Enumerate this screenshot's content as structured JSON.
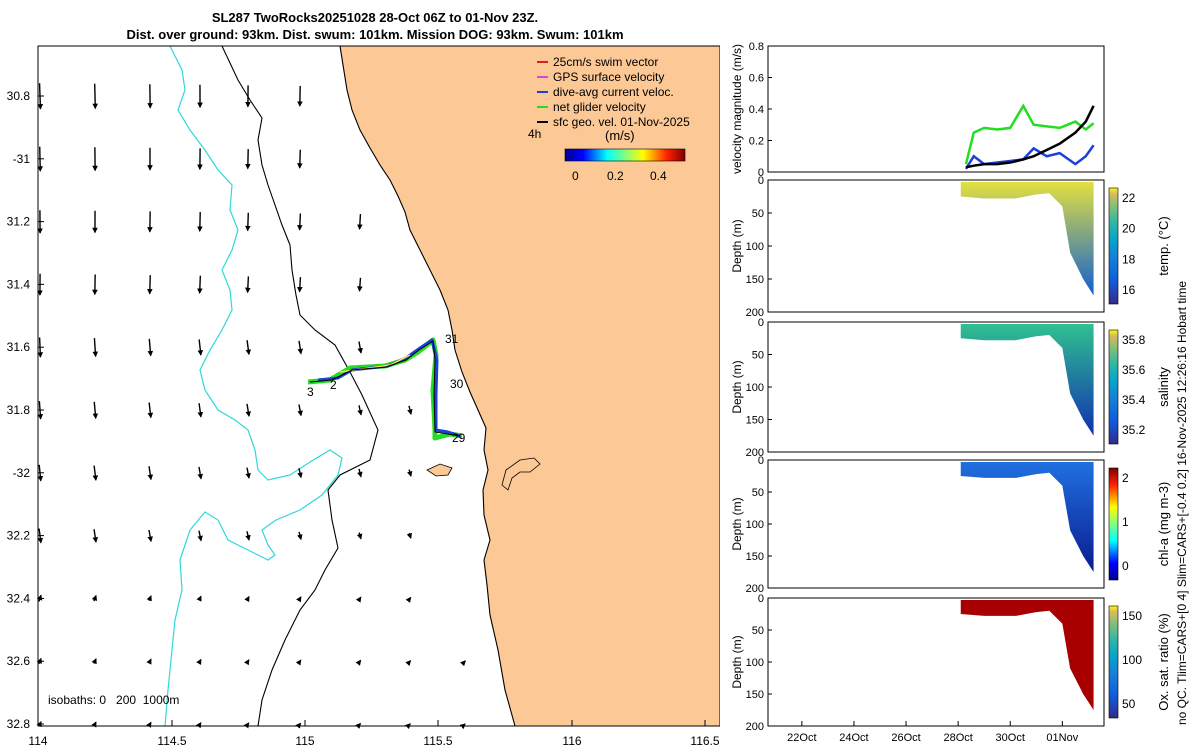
{
  "title_line1": "SL287 TwoRocks20251028 28-Oct 06Z to 01-Nov 23Z.",
  "title_line2": "Dist. over ground: 93km. Dist. swum: 101km. Mission DOG: 93km. Swum: 101km",
  "map": {
    "lon_ticks": [
      "114",
      "114.5",
      "115",
      "115.5",
      "116",
      "116.5"
    ],
    "lat_ticks": [
      "30.8",
      "-31",
      "31.2",
      "31.4",
      "31.6",
      "31.8",
      "-32",
      "32.2",
      "32.4",
      "32.6",
      "32.8"
    ],
    "legend": [
      {
        "label": "25cm/s swim vector",
        "color": "#e41a1c"
      },
      {
        "label": "GPS surface velocity",
        "color": "#e040e0"
      },
      {
        "label": "dive-avg current veloc.",
        "color": "#1f3fd8"
      },
      {
        "label": "net glider velocity",
        "color": "#22dd22"
      },
      {
        "label": "sfc geo. vel. 01-Nov-2025",
        "color": "#000000"
      }
    ],
    "colorbar_title": "(m/s)",
    "colorbar_ticks": [
      "0",
      "0.2",
      "0.4"
    ],
    "interval_label": "4h",
    "day_labels": [
      "3",
      "2",
      "31",
      "30",
      "29"
    ],
    "isobaths_label": "isobaths: 0   200  1000m"
  },
  "chart_data": [
    {
      "type": "line",
      "title": "",
      "ylabel": "velocity magnitude (m/s)",
      "ylim": [
        0,
        0.8
      ],
      "yticks": [
        "0",
        "0.2",
        "0.4",
        "0.6",
        "0.8"
      ],
      "x_days": [
        28.3,
        28.6,
        29.0,
        29.5,
        30.0,
        30.5,
        30.9,
        31.4,
        31.9,
        32.5,
        32.9,
        33.2
      ],
      "series": [
        {
          "name": "net glider velocity",
          "color": "#22dd22",
          "values": [
            0.05,
            0.25,
            0.28,
            0.27,
            0.28,
            0.42,
            0.3,
            0.29,
            0.28,
            0.32,
            0.27,
            0.31
          ]
        },
        {
          "name": "dive-avg current",
          "color": "#1f3fd8",
          "values": [
            0.02,
            0.1,
            0.05,
            0.06,
            0.07,
            0.08,
            0.15,
            0.1,
            0.12,
            0.05,
            0.1,
            0.17
          ]
        },
        {
          "name": "sfc geo. vel.",
          "color": "#000000",
          "values": [
            0.03,
            0.04,
            0.05,
            0.05,
            0.06,
            0.08,
            0.1,
            0.14,
            0.18,
            0.25,
            0.32,
            0.42
          ]
        }
      ]
    },
    {
      "type": "heatmap",
      "ylabel": "Depth (m)",
      "ylim": [
        200,
        0
      ],
      "yticks": [
        "0",
        "50",
        "100",
        "150",
        "200"
      ],
      "colorbar_label": "temp. (°C)",
      "colorbar_ticks": [
        "16",
        "18",
        "20",
        "22"
      ],
      "shallow_color": "#e2e040",
      "deep_color": "#1060d0"
    },
    {
      "type": "heatmap",
      "ylabel": "Depth (m)",
      "ylim": [
        200,
        0
      ],
      "yticks": [
        "0",
        "50",
        "100",
        "150",
        "200"
      ],
      "colorbar_label": "salinity",
      "colorbar_ticks": [
        "35.2",
        "35.4",
        "35.6",
        "35.8"
      ],
      "shallow_color": "#30c090",
      "deep_color": "#1030b0"
    },
    {
      "type": "heatmap",
      "ylabel": "Depth (m)",
      "ylim": [
        200,
        0
      ],
      "yticks": [
        "0",
        "50",
        "100",
        "150",
        "200"
      ],
      "colorbar_label": "chl-a (mg m-3)",
      "colorbar_ticks": [
        "0",
        "1",
        "2"
      ],
      "shallow_color": "#2070e0",
      "deep_color": "#0a1c90"
    },
    {
      "type": "heatmap",
      "ylabel": "Depth (m)",
      "ylim": [
        200,
        0
      ],
      "yticks": [
        "0",
        "50",
        "100",
        "150",
        "200"
      ],
      "colorbar_label": "Ox. sat. ratio (%)",
      "colorbar_ticks": [
        "50",
        "100",
        "150"
      ],
      "shallow_color": "#a80000",
      "deep_color": "#a80000"
    }
  ],
  "time_axis": [
    "22Oct",
    "24Oct",
    "26Oct",
    "28Oct",
    "30Oct",
    "01Nov"
  ],
  "side_caption": "no QC. Tlim=CARS+[0 4] Slim=CARS+[-0.4 0.2] 16-Nov-2025 12:26:16 Hobart time"
}
